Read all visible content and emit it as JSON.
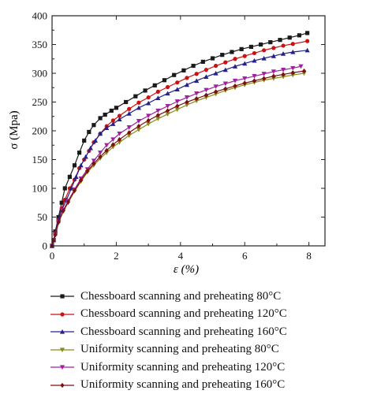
{
  "chart_data": {
    "type": "line",
    "xlabel": "ε (%)",
    "ylabel": "σ (Mpa)",
    "xlim": [
      0,
      8.5
    ],
    "ylim": [
      0,
      400
    ],
    "x_ticks": [
      0,
      2,
      4,
      6,
      8
    ],
    "y_ticks": [
      0,
      50,
      100,
      150,
      200,
      250,
      300,
      350,
      400
    ],
    "grid": false,
    "legend_placement": "below",
    "series": [
      {
        "name": "Chessboard scanning and preheating 80°C",
        "color": "#1a1a1a",
        "marker": "square",
        "x": [
          0,
          0.05,
          0.1,
          0.2,
          0.3,
          0.4,
          0.55,
          0.7,
          0.85,
          1.0,
          1.15,
          1.3,
          1.5,
          1.65,
          1.85,
          2.0,
          2.3,
          2.6,
          2.9,
          3.2,
          3.5,
          3.8,
          4.1,
          4.4,
          4.7,
          5.0,
          5.3,
          5.6,
          5.9,
          6.2,
          6.5,
          6.8,
          7.1,
          7.4,
          7.7,
          7.95
        ],
        "y": [
          0,
          10,
          25,
          50,
          75,
          100,
          120,
          140,
          162,
          183,
          198,
          210,
          222,
          228,
          235,
          240,
          250,
          260,
          270,
          279,
          288,
          297,
          305,
          313,
          320,
          326,
          332,
          337,
          342,
          346,
          350,
          354,
          358,
          362,
          366,
          370
        ]
      },
      {
        "name": "Chessboard scanning and preheating 120°C",
        "color": "#cc1111",
        "marker": "circle",
        "x": [
          0,
          0.05,
          0.1,
          0.2,
          0.3,
          0.4,
          0.55,
          0.7,
          0.85,
          1.0,
          1.15,
          1.3,
          1.5,
          1.7,
          1.9,
          2.1,
          2.4,
          2.7,
          3.0,
          3.3,
          3.6,
          3.9,
          4.2,
          4.5,
          4.8,
          5.1,
          5.4,
          5.7,
          6.0,
          6.3,
          6.6,
          6.9,
          7.2,
          7.5,
          7.95
        ],
        "y": [
          0,
          10,
          22,
          45,
          65,
          80,
          100,
          115,
          135,
          150,
          165,
          180,
          195,
          208,
          218,
          226,
          238,
          249,
          258,
          268,
          276,
          284,
          292,
          299,
          306,
          313,
          319,
          325,
          330,
          335,
          340,
          344,
          348,
          351,
          356
        ]
      },
      {
        "name": "Chessboard scanning and preheating 160°C",
        "color": "#22228a",
        "marker": "triangle-up",
        "x": [
          0,
          0.05,
          0.1,
          0.2,
          0.3,
          0.45,
          0.6,
          0.75,
          0.9,
          1.05,
          1.2,
          1.35,
          1.5,
          1.7,
          1.9,
          2.1,
          2.4,
          2.7,
          3.0,
          3.3,
          3.6,
          3.9,
          4.2,
          4.5,
          4.8,
          5.1,
          5.4,
          5.7,
          6.0,
          6.3,
          6.6,
          6.9,
          7.2,
          7.5,
          7.95
        ],
        "y": [
          0,
          10,
          22,
          45,
          62,
          80,
          100,
          120,
          140,
          155,
          170,
          183,
          195,
          205,
          212,
          220,
          230,
          240,
          248,
          257,
          265,
          272,
          280,
          287,
          294,
          300,
          306,
          312,
          317,
          322,
          326,
          330,
          334,
          337,
          340
        ]
      },
      {
        "name": "Uniformity scanning and preheating 80°C",
        "color": "#8a8a1a",
        "marker": "triangle-down",
        "x": [
          0,
          0.05,
          0.1,
          0.2,
          0.35,
          0.5,
          0.7,
          0.9,
          1.1,
          1.3,
          1.5,
          1.7,
          1.9,
          2.1,
          2.4,
          2.7,
          3.0,
          3.3,
          3.6,
          3.9,
          4.2,
          4.5,
          4.8,
          5.1,
          5.4,
          5.7,
          6.0,
          6.3,
          6.6,
          6.9,
          7.2,
          7.5,
          7.85
        ],
        "y": [
          0,
          8,
          18,
          40,
          60,
          75,
          95,
          112,
          128,
          140,
          152,
          162,
          172,
          180,
          192,
          202,
          212,
          221,
          229,
          237,
          245,
          252,
          258,
          264,
          270,
          275,
          280,
          284,
          288,
          291,
          294,
          297,
          300
        ]
      },
      {
        "name": "Uniformity scanning and preheating 120°C",
        "color": "#a020a0",
        "marker": "triangle-down",
        "x": [
          0,
          0.05,
          0.1,
          0.2,
          0.35,
          0.5,
          0.7,
          0.9,
          1.1,
          1.3,
          1.5,
          1.7,
          1.9,
          2.1,
          2.4,
          2.7,
          3.0,
          3.3,
          3.6,
          3.9,
          4.2,
          4.5,
          4.8,
          5.1,
          5.4,
          5.7,
          6.0,
          6.3,
          6.6,
          6.9,
          7.2,
          7.5,
          7.75
        ],
        "y": [
          0,
          9,
          20,
          42,
          62,
          78,
          98,
          117,
          133,
          148,
          162,
          175,
          185,
          195,
          206,
          217,
          226,
          235,
          243,
          251,
          258,
          265,
          271,
          277,
          282,
          287,
          291,
          295,
          299,
          303,
          306,
          309,
          312
        ]
      },
      {
        "name": "Uniformity scanning and preheating 160°C",
        "color": "#7a1010",
        "marker": "diamond",
        "x": [
          0,
          0.05,
          0.1,
          0.2,
          0.35,
          0.5,
          0.7,
          0.9,
          1.1,
          1.3,
          1.5,
          1.7,
          1.9,
          2.1,
          2.4,
          2.7,
          3.0,
          3.3,
          3.6,
          3.9,
          4.2,
          4.5,
          4.8,
          5.1,
          5.4,
          5.7,
          6.0,
          6.3,
          6.6,
          6.9,
          7.2,
          7.5,
          7.85
        ],
        "y": [
          0,
          9,
          19,
          41,
          61,
          76,
          96,
          114,
          130,
          143,
          155,
          166,
          176,
          185,
          197,
          208,
          218,
          227,
          235,
          243,
          250,
          256,
          262,
          268,
          273,
          278,
          283,
          287,
          291,
          295,
          298,
          301,
          304
        ]
      }
    ]
  }
}
